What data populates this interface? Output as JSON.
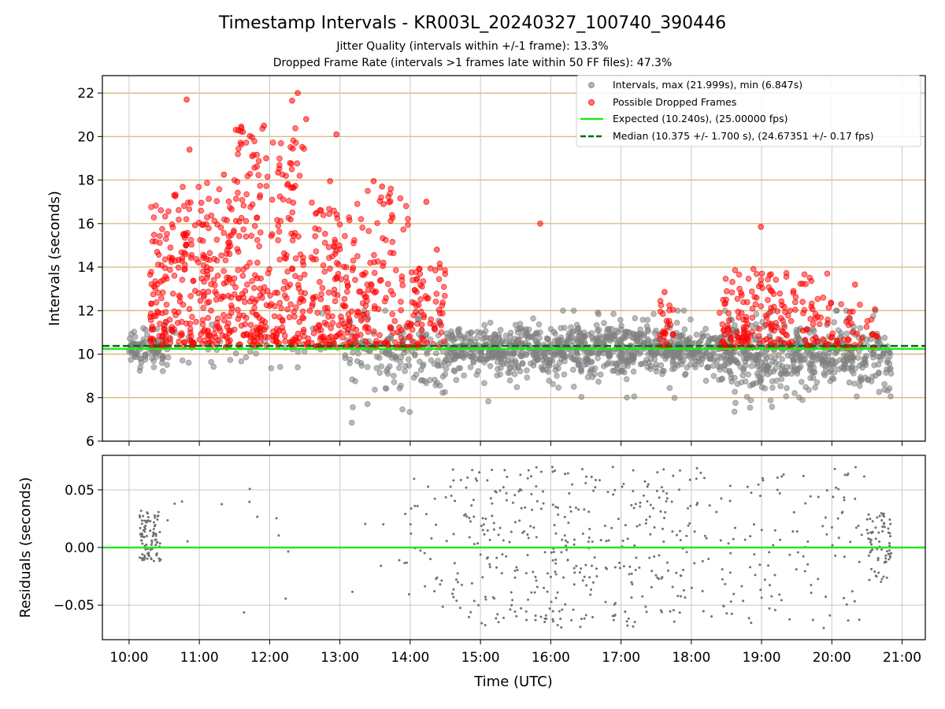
{
  "figure": {
    "title": "Timestamp Intervals - KR003L_20240327_100740_390446",
    "subtitle_1": "Jitter Quality (intervals within +/-1 frame): 13.3%",
    "subtitle_2": "Dropped Frame Rate (intervals >1 frames late within 50 FF files): 47.3%"
  },
  "colors": {
    "intervals": "#808080",
    "dropped": "#ff0000",
    "expected": "#22e822",
    "median": "#007000",
    "hgrid": "#d2b06a",
    "vgrid": "#c8c8c8"
  },
  "chart_data": [
    {
      "type": "scatter",
      "id": "intervals",
      "xlabel": "",
      "ylabel": "Intervals (seconds)",
      "x_unit": "hours UTC",
      "xlim": [
        9.62,
        21.33
      ],
      "ylim": [
        6,
        22.8
      ],
      "yticks": [
        6,
        8,
        10,
        12,
        14,
        16,
        18,
        20,
        22
      ],
      "ytick_labels": [
        "6",
        "8",
        "10",
        "12",
        "14",
        "16",
        "18",
        "20",
        "22"
      ],
      "xticks": [
        10,
        11,
        12,
        13,
        14,
        15,
        16,
        17,
        18,
        19,
        20,
        21
      ],
      "hgrid": true,
      "vgrid": true,
      "legend_position": "top-right",
      "legend": [
        {
          "label": "Intervals, max (21.999s), min (6.847s)",
          "marker": "dot-gray"
        },
        {
          "label": "Possible Dropped Frames",
          "marker": "dot-red"
        },
        {
          "label": "Expected (10.240s), (25.00000 fps)",
          "marker": "line-solid-green"
        },
        {
          "label": "Median (10.375 +/- 1.700 s), (24.67351 +/- 0.17 fps)",
          "marker": "line-dashed-darkgreen"
        }
      ],
      "expected_value": 10.24,
      "median_value": 10.375,
      "max_interval": 21.999,
      "min_interval": 6.847,
      "x_range": [
        10.0,
        20.85
      ],
      "interval_clusters": [
        {
          "x": [
            10.0,
            10.55
          ],
          "center": 10.2,
          "spread": 0.45,
          "count": 90
        },
        {
          "x": [
            10.55,
            13.1
          ],
          "center": 10.2,
          "spread": 0.5,
          "count": 40
        },
        {
          "x": [
            13.1,
            14.5
          ],
          "center": 10.0,
          "spread": 0.9,
          "count": 150
        },
        {
          "x": [
            14.5,
            17.5
          ],
          "center": 10.2,
          "spread": 0.55,
          "count": 700
        },
        {
          "x": [
            17.5,
            18.4
          ],
          "center": 10.2,
          "spread": 0.5,
          "count": 200
        },
        {
          "x": [
            18.4,
            20.85
          ],
          "center": 9.9,
          "spread": 0.75,
          "count": 500
        }
      ],
      "dropped_clusters": [
        {
          "x": [
            10.3,
            10.6
          ],
          "min": 10.3,
          "max": 17.0,
          "count": 80
        },
        {
          "x": [
            10.6,
            11.5
          ],
          "min": 10.3,
          "max": 18.0,
          "count": 220
        },
        {
          "x": [
            11.5,
            12.5
          ],
          "min": 10.4,
          "max": 20.5,
          "count": 260
        },
        {
          "x": [
            12.5,
            13.3
          ],
          "min": 10.3,
          "max": 17.0,
          "count": 160
        },
        {
          "x": [
            13.3,
            14.0
          ],
          "min": 10.3,
          "max": 17.7,
          "count": 110
        },
        {
          "x": [
            14.0,
            14.5
          ],
          "min": 10.2,
          "max": 14.2,
          "count": 70
        },
        {
          "x": [
            17.55,
            17.75
          ],
          "min": 10.3,
          "max": 12.5,
          "count": 25
        },
        {
          "x": [
            18.4,
            19.2
          ],
          "min": 10.3,
          "max": 14.0,
          "count": 120
        },
        {
          "x": [
            19.2,
            20.0
          ],
          "min": 10.3,
          "max": 13.8,
          "count": 80
        },
        {
          "x": [
            20.0,
            20.65
          ],
          "min": 10.3,
          "max": 12.3,
          "count": 40
        }
      ],
      "notable_points": [
        {
          "x": 10.82,
          "y": 21.7
        },
        {
          "x": 12.4,
          "y": 21.999
        },
        {
          "x": 12.32,
          "y": 21.65
        },
        {
          "x": 12.52,
          "y": 20.8
        },
        {
          "x": 11.92,
          "y": 20.5
        },
        {
          "x": 12.95,
          "y": 20.1
        },
        {
          "x": 10.86,
          "y": 19.4
        },
        {
          "x": 11.95,
          "y": 19.0
        },
        {
          "x": 12.33,
          "y": 19.45
        },
        {
          "x": 12.12,
          "y": 18.35
        },
        {
          "x": 11.35,
          "y": 18.25
        },
        {
          "x": 12.86,
          "y": 17.95
        },
        {
          "x": 13.48,
          "y": 17.95
        },
        {
          "x": 13.6,
          "y": 17.7
        },
        {
          "x": 13.62,
          "y": 16.9
        },
        {
          "x": 14.23,
          "y": 17.0
        },
        {
          "x": 15.85,
          "y": 16.0
        },
        {
          "x": 18.99,
          "y": 15.85
        },
        {
          "x": 14.38,
          "y": 14.8
        },
        {
          "x": 17.62,
          "y": 12.85
        },
        {
          "x": 20.33,
          "y": 13.2
        }
      ]
    },
    {
      "type": "scatter",
      "id": "residuals",
      "xlabel": "Time (UTC)",
      "ylabel": "Residuals (seconds)",
      "x_unit": "hours UTC",
      "xlim": [
        9.62,
        21.33
      ],
      "ylim": [
        -0.08,
        0.08
      ],
      "yticks": [
        -0.05,
        0.0,
        0.05
      ],
      "ytick_labels": [
        "−0.05",
        "0.00",
        "0.05"
      ],
      "xticks": [
        10,
        11,
        12,
        13,
        14,
        15,
        16,
        17,
        18,
        19,
        20,
        21
      ],
      "xtick_labels": [
        "10:00",
        "11:00",
        "12:00",
        "13:00",
        "14:00",
        "15:00",
        "16:00",
        "17:00",
        "18:00",
        "19:00",
        "20:00",
        "21:00"
      ],
      "zero_line": 0.0,
      "hgrid": true,
      "vgrid": true,
      "residual_clusters": [
        {
          "x": [
            10.15,
            10.45
          ],
          "center": 0.01,
          "spread": 0.022,
          "count": 90
        },
        {
          "x": [
            10.45,
            13.9
          ],
          "center": 0.0,
          "spread": 0.06,
          "count": 18
        },
        {
          "x": [
            13.9,
            14.6
          ],
          "center": 0.0,
          "spread": 0.06,
          "count": 30
        },
        {
          "x": [
            14.6,
            17.9
          ],
          "center": 0.0,
          "spread": 0.07,
          "count": 360
        },
        {
          "x": [
            17.9,
            20.5
          ],
          "center": 0.0,
          "spread": 0.07,
          "count": 140
        },
        {
          "x": [
            20.5,
            20.85
          ],
          "center": 0.0,
          "spread": 0.03,
          "count": 70
        }
      ]
    }
  ]
}
